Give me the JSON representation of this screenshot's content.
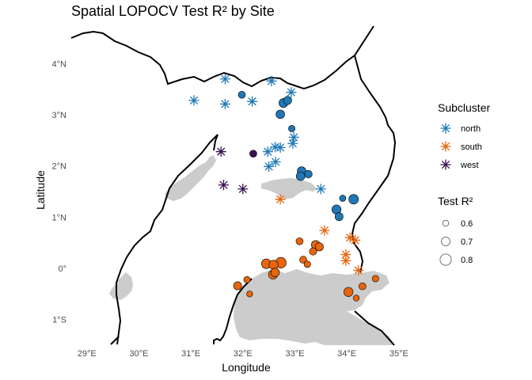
{
  "title": "Spatial LOPOCV Test R² by Site",
  "xlabel": "Longitude",
  "ylabel": "Latitude",
  "x_ticks": [
    {
      "value": 29,
      "label": "29°E"
    },
    {
      "value": 30,
      "label": "30°E"
    },
    {
      "value": 31,
      "label": "31°E"
    },
    {
      "value": 32,
      "label": "32°E"
    },
    {
      "value": 33,
      "label": "33°E"
    },
    {
      "value": 34,
      "label": "34°E"
    },
    {
      "value": 35,
      "label": "35°E"
    }
  ],
  "y_ticks": [
    {
      "value": 4,
      "label": "4°N"
    },
    {
      "value": 3,
      "label": "3°N"
    },
    {
      "value": 2,
      "label": "2°N"
    },
    {
      "value": 1,
      "label": "1°N"
    },
    {
      "value": 0,
      "label": "0°"
    },
    {
      "value": -1,
      "label": "1°S"
    }
  ],
  "colors": {
    "north": "#1f77b4",
    "south": "#e6650e",
    "west": "#3b0f4f",
    "water": "#cccccc",
    "border": "#000000"
  },
  "legend": {
    "subcluster_title": "Subcluster",
    "subclusters": [
      {
        "key": "north",
        "label": "north"
      },
      {
        "key": "south",
        "label": "south"
      },
      {
        "key": "west",
        "label": "west"
      }
    ],
    "size_title": "Test R²",
    "sizes": [
      {
        "value": 0.6,
        "label": "0.6"
      },
      {
        "value": 0.7,
        "label": "0.7"
      },
      {
        "value": 0.8,
        "label": "0.8"
      }
    ]
  },
  "chart_data": {
    "type": "scatter",
    "xlim": [
      28.7,
      35.2
    ],
    "ylim": [
      -1.5,
      4.5
    ],
    "grid": false,
    "legend_position": "right",
    "points": [
      {
        "lon": 31.66,
        "lat": 3.7,
        "sub": "north",
        "r2": null
      },
      {
        "lon": 31.06,
        "lat": 3.28,
        "sub": "north",
        "r2": null
      },
      {
        "lon": 31.66,
        "lat": 3.21,
        "sub": "north",
        "r2": null
      },
      {
        "lon": 32.18,
        "lat": 3.26,
        "sub": "north",
        "r2": null
      },
      {
        "lon": 32.55,
        "lat": 3.66,
        "sub": "north",
        "r2": null
      },
      {
        "lon": 32.93,
        "lat": 3.44,
        "sub": "north",
        "r2": null
      },
      {
        "lon": 32.98,
        "lat": 2.56,
        "sub": "north",
        "r2": null
      },
      {
        "lon": 32.96,
        "lat": 2.44,
        "sub": "north",
        "r2": null
      },
      {
        "lon": 32.62,
        "lat": 2.37,
        "sub": "north",
        "r2": null
      },
      {
        "lon": 32.72,
        "lat": 2.36,
        "sub": "north",
        "r2": null
      },
      {
        "lon": 32.48,
        "lat": 2.28,
        "sub": "north",
        "r2": null
      },
      {
        "lon": 32.63,
        "lat": 2.08,
        "sub": "north",
        "r2": null
      },
      {
        "lon": 32.5,
        "lat": 1.99,
        "sub": "north",
        "r2": null
      },
      {
        "lon": 33.5,
        "lat": 1.55,
        "sub": "north",
        "r2": null
      },
      {
        "lon": 31.98,
        "lat": 3.39,
        "sub": "north",
        "r2": 0.64
      },
      {
        "lon": 32.78,
        "lat": 3.23,
        "sub": "north",
        "r2": 0.71
      },
      {
        "lon": 32.86,
        "lat": 3.28,
        "sub": "north",
        "r2": 0.68
      },
      {
        "lon": 32.72,
        "lat": 3.01,
        "sub": "north",
        "r2": 0.7
      },
      {
        "lon": 32.94,
        "lat": 2.73,
        "sub": "north",
        "r2": 0.62
      },
      {
        "lon": 33.13,
        "lat": 1.9,
        "sub": "north",
        "r2": 0.7
      },
      {
        "lon": 33.11,
        "lat": 1.8,
        "sub": "north",
        "r2": 0.7
      },
      {
        "lon": 33.26,
        "lat": 1.84,
        "sub": "north",
        "r2": 0.66
      },
      {
        "lon": 33.92,
        "lat": 1.37,
        "sub": "north",
        "r2": 0.61
      },
      {
        "lon": 34.13,
        "lat": 1.35,
        "sub": "north",
        "r2": 0.74
      },
      {
        "lon": 33.8,
        "lat": 1.15,
        "sub": "north",
        "r2": 0.72
      },
      {
        "lon": 33.85,
        "lat": 1.01,
        "sub": "north",
        "r2": 0.68
      },
      {
        "lon": 31.58,
        "lat": 2.28,
        "sub": "west",
        "r2": null
      },
      {
        "lon": 31.63,
        "lat": 1.63,
        "sub": "west",
        "r2": null
      },
      {
        "lon": 32.0,
        "lat": 1.55,
        "sub": "west",
        "r2": null
      },
      {
        "lon": 32.2,
        "lat": 2.24,
        "sub": "west",
        "r2": 0.64
      },
      {
        "lon": 32.72,
        "lat": 1.35,
        "sub": "south",
        "r2": null
      },
      {
        "lon": 33.57,
        "lat": 0.74,
        "sub": "south",
        "r2": null
      },
      {
        "lon": 34.06,
        "lat": 0.6,
        "sub": "south",
        "r2": null
      },
      {
        "lon": 34.16,
        "lat": 0.55,
        "sub": "south",
        "r2": null
      },
      {
        "lon": 33.98,
        "lat": 0.27,
        "sub": "south",
        "r2": null
      },
      {
        "lon": 33.98,
        "lat": 0.15,
        "sub": "south",
        "r2": null
      },
      {
        "lon": 34.22,
        "lat": -0.04,
        "sub": "south",
        "r2": null
      },
      {
        "lon": 33.09,
        "lat": 0.53,
        "sub": "south",
        "r2": 0.64
      },
      {
        "lon": 33.4,
        "lat": 0.46,
        "sub": "south",
        "r2": 0.7
      },
      {
        "lon": 33.47,
        "lat": 0.42,
        "sub": "south",
        "r2": 0.68
      },
      {
        "lon": 33.35,
        "lat": 0.33,
        "sub": "south",
        "r2": 0.65
      },
      {
        "lon": 32.45,
        "lat": 0.09,
        "sub": "south",
        "r2": 0.74
      },
      {
        "lon": 32.59,
        "lat": 0.07,
        "sub": "south",
        "r2": 0.72
      },
      {
        "lon": 32.73,
        "lat": 0.11,
        "sub": "south",
        "r2": 0.78
      },
      {
        "lon": 33.16,
        "lat": 0.17,
        "sub": "south",
        "r2": 0.64
      },
      {
        "lon": 33.24,
        "lat": 0.08,
        "sub": "south",
        "r2": 0.62
      },
      {
        "lon": 32.62,
        "lat": -0.08,
        "sub": "south",
        "r2": 0.7
      },
      {
        "lon": 32.58,
        "lat": -0.12,
        "sub": "south",
        "r2": 0.72
      },
      {
        "lon": 32.08,
        "lat": -0.22,
        "sub": "south",
        "r2": 0.62
      },
      {
        "lon": 31.9,
        "lat": -0.34,
        "sub": "south",
        "r2": 0.68
      },
      {
        "lon": 32.13,
        "lat": -0.5,
        "sub": "south",
        "r2": 0.6
      },
      {
        "lon": 34.3,
        "lat": -0.35,
        "sub": "south",
        "r2": 0.64
      },
      {
        "lon": 34.55,
        "lat": -0.2,
        "sub": "south",
        "r2": 0.62
      },
      {
        "lon": 34.03,
        "lat": -0.46,
        "sub": "south",
        "r2": 0.72
      },
      {
        "lon": 34.18,
        "lat": -0.58,
        "sub": "south",
        "r2": 0.6
      }
    ]
  }
}
